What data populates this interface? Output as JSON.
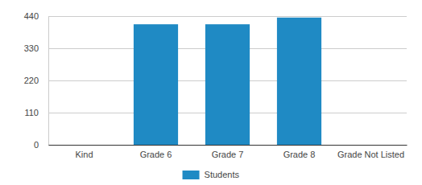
{
  "chart_data": {
    "type": "bar",
    "categories": [
      "Kind",
      "Grade 6",
      "Grade 7",
      "Grade 8",
      "Grade Not Listed"
    ],
    "series": [
      {
        "name": "Students",
        "color": "#1f8ac4",
        "values": [
          0,
          412,
          412,
          435,
          0
        ]
      }
    ],
    "ylim": [
      0,
      440
    ],
    "yticks": [
      0,
      110,
      220,
      330,
      440
    ],
    "grid": true,
    "legend": "bottom"
  }
}
